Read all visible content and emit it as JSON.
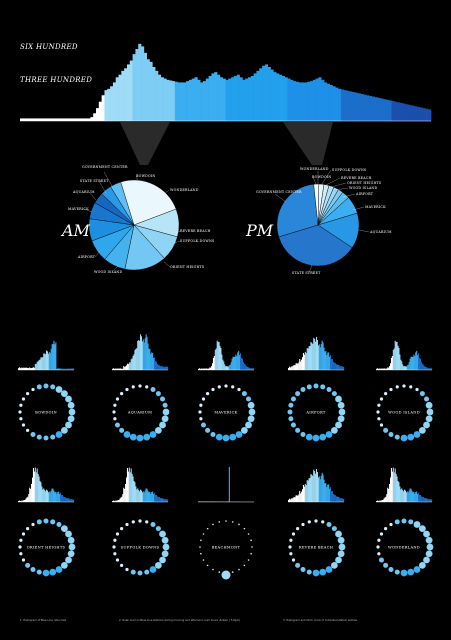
{
  "palette": {
    "light": "#9fdcf7",
    "mid": "#3aaef0",
    "bright": "#1e90e8",
    "deep": "#1b6ec9",
    "navy": "#1a4fae",
    "pale": "#e6f6fd",
    "background": "#000000"
  },
  "chart_data": [
    {
      "type": "bar",
      "id": "main-histogram",
      "ylabels": [
        "SIX HUNDRED",
        "THREE HUNDRED"
      ],
      "ylabel_values": [
        600,
        300
      ],
      "ylim": [
        0,
        630
      ],
      "series_values": [
        20,
        20,
        20,
        20,
        20,
        20,
        20,
        20,
        20,
        20,
        20,
        20,
        20,
        20,
        20,
        20,
        20,
        20,
        20,
        20,
        20,
        20,
        20,
        20,
        20,
        30,
        60,
        100,
        150,
        200,
        240,
        250,
        270,
        300,
        340,
        360,
        390,
        410,
        440,
        470,
        520,
        560,
        600,
        580,
        530,
        480,
        460,
        420,
        390,
        360,
        340,
        330,
        320,
        315,
        310,
        305,
        300,
        300,
        300,
        310,
        320,
        330,
        340,
        320,
        300,
        310,
        330,
        350,
        370,
        380,
        360,
        340,
        330,
        320,
        330,
        340,
        350,
        360,
        340,
        320,
        330,
        340,
        350,
        370,
        390,
        410,
        430,
        440,
        420,
        400,
        380,
        370,
        360,
        350,
        340,
        330,
        320,
        310,
        305,
        300,
        300,
        300,
        305,
        310,
        320,
        330,
        340,
        320,
        300,
        290,
        280,
        270,
        260,
        250,
        245,
        240,
        235,
        230,
        225,
        220,
        215,
        210,
        205,
        200,
        195,
        190,
        185,
        180,
        175,
        170,
        165,
        160,
        155,
        150,
        145,
        140,
        135,
        130,
        125,
        120,
        115,
        110,
        105,
        100,
        95,
        90
      ]
    },
    {
      "type": "pie",
      "id": "am-pie",
      "label": "AM",
      "labels": [
        "BOWDOIN",
        "WONDERLAND",
        "REVERE BEACH",
        "SUFFOLK DOWNS",
        "ORIENT HEIGHTS",
        "WOOD ISLAND",
        "AIRPORT",
        "MAVERICK",
        "AQUARIUM",
        "STATE STREET",
        "GOVERNMENT CENTER"
      ],
      "values": [
        4,
        24,
        10,
        9,
        15,
        8,
        8,
        8,
        6,
        4,
        4
      ]
    },
    {
      "type": "pie",
      "id": "pm-pie",
      "label": "PM",
      "labels": [
        "WONDERLAND",
        "SUFFOLK DOWNS",
        "REVERE BEACH",
        "ORIENT HEIGHTS",
        "WOOD ISLAND",
        "AIRPORT",
        "MAVERICK",
        "AQUARIUM",
        "STATE STREET",
        "GOVERNMENT CENTER",
        "BOWDOIN"
      ],
      "values": [
        2,
        2,
        2,
        2,
        2,
        3,
        7,
        14,
        36,
        28,
        2
      ]
    },
    {
      "type": "bar",
      "id": "station-small-multiples",
      "stations": [
        {
          "name": "BOWDOIN",
          "shape": "late-peak",
          "dots": [
            2,
            2,
            3,
            3,
            3,
            3,
            3,
            3,
            3,
            3,
            3,
            2,
            2,
            2,
            2,
            1,
            1,
            1,
            1,
            1,
            1,
            1,
            1,
            2
          ]
        },
        {
          "name": "AQUARIUM",
          "shape": "mid-peak",
          "dots": [
            1,
            1,
            2,
            2,
            2,
            2,
            3,
            3,
            3,
            3,
            3,
            3,
            3,
            3,
            3,
            2,
            2,
            1,
            1,
            1,
            1,
            1,
            1,
            1
          ]
        },
        {
          "name": "MAVERICK",
          "shape": "double-peak",
          "dots": [
            1,
            1,
            1,
            2,
            2,
            3,
            3,
            3,
            3,
            3,
            3,
            3,
            3,
            3,
            2,
            2,
            2,
            1,
            1,
            1,
            1,
            1,
            1,
            1
          ]
        },
        {
          "name": "AIRPORT",
          "shape": "broad",
          "dots": [
            2,
            2,
            2,
            2,
            3,
            3,
            3,
            3,
            3,
            3,
            3,
            3,
            3,
            3,
            2,
            2,
            2,
            2,
            2,
            2,
            2,
            2,
            2,
            2
          ]
        },
        {
          "name": "WOOD ISLAND",
          "shape": "double-peak",
          "dots": [
            1,
            1,
            1,
            2,
            2,
            3,
            3,
            3,
            3,
            3,
            3,
            3,
            3,
            2,
            2,
            2,
            1,
            1,
            1,
            1,
            1,
            1,
            1,
            1
          ]
        },
        {
          "name": "ORIENT HEIGHTS",
          "shape": "early-peak",
          "dots": [
            2,
            2,
            2,
            3,
            3,
            3,
            3,
            3,
            3,
            3,
            3,
            3,
            3,
            2,
            2,
            2,
            1,
            1,
            1,
            1,
            1,
            1,
            1,
            2
          ]
        },
        {
          "name": "SUFFOLK DOWNS",
          "shape": "early-peak",
          "dots": [
            1,
            1,
            2,
            2,
            3,
            3,
            3,
            3,
            3,
            3,
            3,
            2,
            2,
            2,
            1,
            1,
            1,
            1,
            1,
            1,
            1,
            1,
            1,
            1
          ]
        },
        {
          "name": "BEACHMONT",
          "shape": "single-spike",
          "dots": [
            0,
            0,
            0,
            0,
            0,
            0,
            0,
            0,
            0,
            0,
            0,
            0,
            0,
            0,
            0,
            0,
            0,
            0,
            0,
            0,
            0,
            0,
            0,
            0
          ]
        },
        {
          "name": "REVERE BEACH",
          "shape": "broad",
          "dots": [
            1,
            1,
            2,
            2,
            3,
            3,
            3,
            3,
            3,
            3,
            3,
            3,
            3,
            2,
            2,
            2,
            1,
            1,
            1,
            1,
            1,
            1,
            1,
            1
          ]
        },
        {
          "name": "WONDERLAND",
          "shape": "early-peak",
          "dots": [
            2,
            2,
            3,
            3,
            3,
            3,
            3,
            3,
            3,
            3,
            3,
            3,
            3,
            2,
            2,
            2,
            2,
            1,
            1,
            1,
            1,
            1,
            1,
            2
          ]
        }
      ]
    }
  ],
  "footnotes": [
    "1. Histogram of Blue Line rider load",
    "2. Rider load on Blue Line stations during morning and afternoon rush hours (6-9am | 3-6pm)",
    "3. Histogram and 24-hr clock of individual station entries"
  ]
}
